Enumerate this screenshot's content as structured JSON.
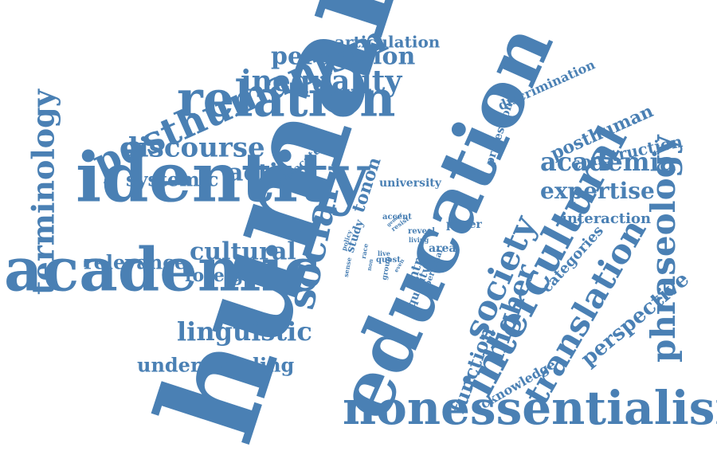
{
  "colors": {
    "word": "#4a80b4",
    "background": "#ffffff"
  },
  "words": [
    {
      "key": "human",
      "text": "human"
    },
    {
      "key": "education",
      "text": "education"
    },
    {
      "key": "nonessentialism",
      "text": "nonessentialism"
    },
    {
      "key": "identity",
      "text": "identity"
    },
    {
      "key": "academic",
      "text": "academic"
    },
    {
      "key": "relation",
      "text": "relation"
    },
    {
      "key": "posthumanism",
      "text": "posthumanism"
    },
    {
      "key": "intercultural",
      "text": "intercultural"
    },
    {
      "key": "social",
      "text": "social"
    },
    {
      "key": "society",
      "text": "society"
    },
    {
      "key": "translation",
      "text": "translation"
    },
    {
      "key": "phraseology",
      "text": "phraseology"
    },
    {
      "key": "terminology",
      "text": "terminology"
    },
    {
      "key": "discourse",
      "text": "discourse"
    },
    {
      "key": "inequality",
      "text": "inequality"
    },
    {
      "key": "perception",
      "text": "perception"
    },
    {
      "key": "articulation",
      "text": "articulation"
    },
    {
      "key": "systemic",
      "text": "systemic"
    },
    {
      "key": "action",
      "text": "action"
    },
    {
      "key": "academia",
      "text": "academia"
    },
    {
      "key": "expertise",
      "text": "expertise"
    },
    {
      "key": "posthuman",
      "text": "posthuman"
    },
    {
      "key": "construction",
      "text": "construction"
    },
    {
      "key": "interaction",
      "text": "interaction"
    },
    {
      "key": "higher",
      "text": "higher"
    },
    {
      "key": "perspective",
      "text": "perspective"
    },
    {
      "key": "linguistic",
      "text": "linguistic"
    },
    {
      "key": "understanding",
      "text": "understanding"
    },
    {
      "key": "relevance",
      "text": "relevance"
    },
    {
      "key": "cultural",
      "text": "cultural"
    },
    {
      "key": "foreigner",
      "text": "foreigner"
    },
    {
      "key": "discrimination",
      "text": "discrimination"
    },
    {
      "key": "professional",
      "text": "professional"
    },
    {
      "key": "function",
      "text": "function"
    },
    {
      "key": "acknowledge",
      "text": "acknowledge"
    },
    {
      "key": "categories",
      "text": "categories"
    },
    {
      "key": "tonon",
      "text": "tonon"
    },
    {
      "key": "advocate",
      "text": "advocate"
    },
    {
      "key": "university",
      "text": "university"
    },
    {
      "key": "paper",
      "text": "paper"
    },
    {
      "key": "area",
      "text": "area"
    },
    {
      "key": "equality",
      "text": "equality"
    },
    {
      "key": "intra",
      "text": "intra"
    },
    {
      "key": "personal",
      "text": "personal"
    },
    {
      "key": "study",
      "text": "study"
    },
    {
      "key": "policy",
      "text": "policy"
    },
    {
      "key": "accent",
      "text": "accent"
    },
    {
      "key": "resist",
      "text": "resist"
    },
    {
      "key": "reveal",
      "text": "reveal"
    },
    {
      "key": "living",
      "text": "living"
    },
    {
      "key": "live",
      "text": "live"
    },
    {
      "key": "quest",
      "text": "quest"
    },
    {
      "key": "race",
      "text": "race"
    },
    {
      "key": "sense",
      "text": "sense"
    },
    {
      "key": "group",
      "text": "group"
    },
    {
      "key": "even",
      "text": "even"
    },
    {
      "key": "gender",
      "text": "gender"
    },
    {
      "key": "non",
      "text": "non"
    }
  ]
}
